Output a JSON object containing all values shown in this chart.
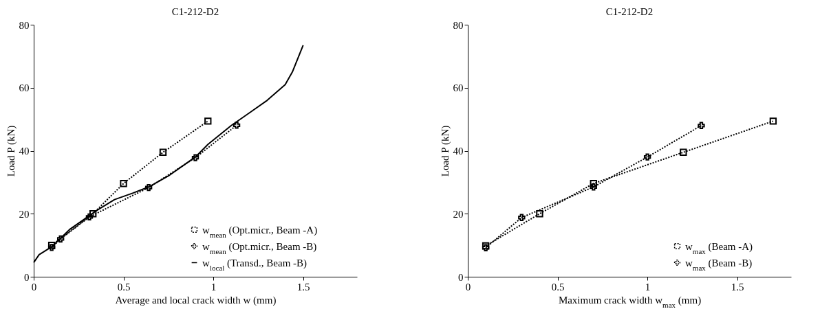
{
  "chart_data": [
    {
      "type": "line",
      "title": "C1-212-D2",
      "xlabel": "Average and local crack width w (mm)",
      "ylabel": "Load P (kN)",
      "xlim": [
        0,
        1.8
      ],
      "xticks": [
        0,
        0.5,
        1,
        1.5
      ],
      "ylim": [
        0,
        80
      ],
      "yticks": [
        0,
        20,
        40,
        60,
        80
      ],
      "grid": false,
      "legend": "bottom right",
      "series": [
        {
          "name": "w$_{mean}$ (Opt.micr., Beam -A)",
          "color": "#000000",
          "marker": "square",
          "line_style": "dotted",
          "x": [
            0.1,
            0.33,
            0.5,
            0.72,
            0.97
          ],
          "values": [
            10,
            20,
            29.6,
            39.5,
            49.4
          ]
        },
        {
          "name": "w$_{mean}$ (Opt.micr., Beam -B)",
          "color": "#000000",
          "marker": "cross",
          "line_style": "dotted",
          "x": [
            0.1,
            0.15,
            0.31,
            0.64,
            0.9,
            1.13
          ],
          "values": [
            9.3,
            12,
            19,
            28.3,
            37.8,
            48.1
          ]
        },
        {
          "name": "w$_{local}$ (Transd., Beam -B)",
          "color": "#000000",
          "marker": "none",
          "line_style": "solid",
          "x": [
            0,
            0.03,
            0.1,
            0.2,
            0.3,
            0.35,
            0.45,
            0.55,
            0.64,
            0.75,
            0.9,
            0.97,
            1.1,
            1.2,
            1.3,
            1.4,
            1.44,
            1.5
          ],
          "values": [
            4.5,
            7,
            9.5,
            15,
            19,
            21,
            24.5,
            26.5,
            28.5,
            32,
            38,
            42,
            48,
            52,
            56,
            61,
            65,
            73.5
          ]
        }
      ]
    },
    {
      "type": "line",
      "title": "C1-212-D2",
      "xlabel": "Maximum crack width w$_{max}$ (mm)",
      "ylabel": "Load P (kN)",
      "xlim": [
        0,
        1.8
      ],
      "xticks": [
        0,
        0.5,
        1,
        1.5
      ],
      "ylim": [
        0,
        80
      ],
      "yticks": [
        0,
        20,
        40,
        60,
        80
      ],
      "grid": false,
      "legend": "bottom right",
      "series": [
        {
          "name": "w$_{max}$ (Beam -A)",
          "color": "#000000",
          "marker": "square",
          "line_style": "dotted",
          "x": [
            0.1,
            0.4,
            0.7,
            1.2,
            1.7
          ],
          "values": [
            9.8,
            20,
            29.6,
            39.5,
            49.4
          ]
        },
        {
          "name": "w$_{max}$ (Beam -B)",
          "color": "#000000",
          "marker": "cross",
          "line_style": "dotted",
          "x": [
            0.1,
            0.3,
            0.7,
            1.0,
            1.3
          ],
          "values": [
            9.2,
            18.8,
            28.5,
            38,
            48
          ]
        }
      ]
    }
  ]
}
